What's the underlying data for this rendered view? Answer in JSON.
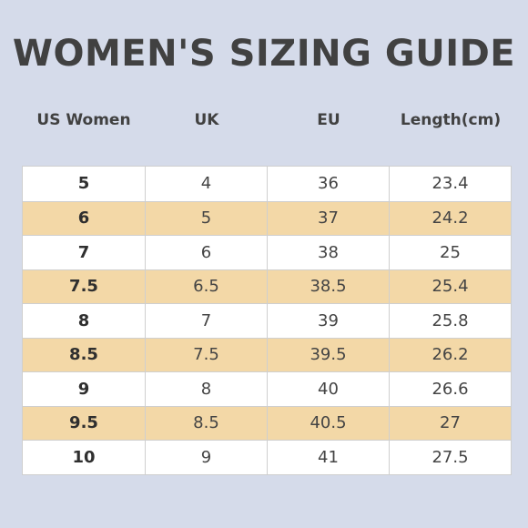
{
  "title": "WOMEN'S SIZING GUIDE",
  "headers": [
    "US Women",
    "UK",
    "EU",
    "Length(cm)"
  ],
  "rows": [
    [
      "5",
      "4",
      "36",
      "23.4"
    ],
    [
      "6",
      "5",
      "37",
      "24.2"
    ],
    [
      "7",
      "6",
      "38",
      "25"
    ],
    [
      "7.5",
      "6.5",
      "38.5",
      "25.4"
    ],
    [
      "8",
      "7",
      "39",
      "25.8"
    ],
    [
      "8.5",
      "7.5",
      "39.5",
      "26.2"
    ],
    [
      "9",
      "8",
      "40",
      "26.6"
    ],
    [
      "9.5",
      "8.5",
      "40.5",
      "27"
    ],
    [
      "10",
      "9",
      "41",
      "27.5"
    ]
  ],
  "colors": {
    "background": "#d5dbea",
    "row_white": "#ffffff",
    "row_tan": "#f3d8a7",
    "text": "#414141"
  }
}
